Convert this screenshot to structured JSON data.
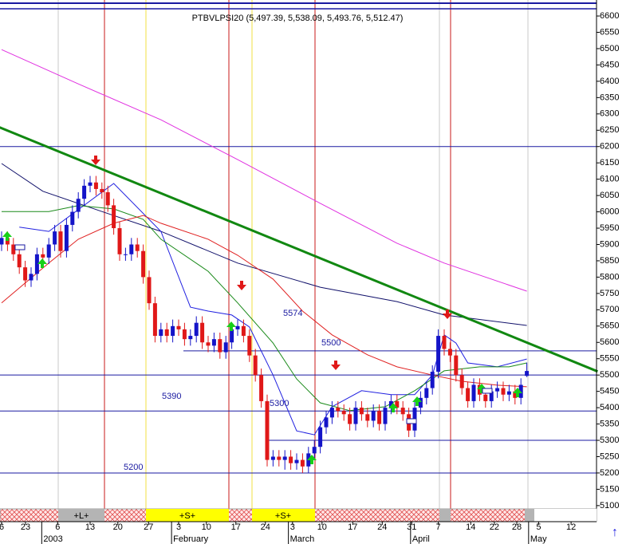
{
  "chart_data": {
    "type": "candlestick",
    "title": "PTBVLPSI20 (5,497.39, 5,538.09, 5,493.76, 5,512.47)",
    "xlim": [
      -0.27,
      100.81
    ],
    "ylim": [
      5085,
      6649
    ],
    "yticks": [
      5100,
      5150,
      5200,
      5250,
      5300,
      5350,
      5400,
      5450,
      5500,
      5550,
      5600,
      5650,
      5700,
      5750,
      5800,
      5850,
      5900,
      5950,
      6000,
      6050,
      6100,
      6150,
      6200,
      6250,
      6300,
      6350,
      6400,
      6450,
      6500,
      6550,
      6600
    ],
    "xticks": [
      {
        "value": 0,
        "label": "6"
      },
      {
        "value": 4.05,
        "label": "23"
      },
      {
        "value": 9.5,
        "label": "6"
      },
      {
        "value": 15,
        "label": "13"
      },
      {
        "value": 19.7,
        "label": "20"
      },
      {
        "value": 24.9,
        "label": "27"
      },
      {
        "value": 30,
        "label": "3"
      },
      {
        "value": 34.7,
        "label": "10"
      },
      {
        "value": 39.7,
        "label": "17"
      },
      {
        "value": 44.7,
        "label": "24"
      },
      {
        "value": 49.3,
        "label": "3"
      },
      {
        "value": 54.3,
        "label": "10"
      },
      {
        "value": 59.5,
        "label": "17"
      },
      {
        "value": 64.5,
        "label": "24"
      },
      {
        "value": 69.5,
        "label": "31"
      },
      {
        "value": 74,
        "label": "7"
      },
      {
        "value": 79.5,
        "label": "14"
      },
      {
        "value": 83.5,
        "label": "22"
      },
      {
        "value": 87.3,
        "label": "28"
      },
      {
        "value": 91,
        "label": "5"
      },
      {
        "value": 96.5,
        "label": "12"
      }
    ],
    "month_ticks": [
      {
        "value": 6.8,
        "label": "2003"
      },
      {
        "value": 28.8,
        "label": "February"
      },
      {
        "value": 48.6,
        "label": "March"
      },
      {
        "value": 69.3,
        "label": "April"
      },
      {
        "value": 89.3,
        "label": "May"
      }
    ],
    "up_color": "#1414c8",
    "down_color": "#e01818",
    "open": [
      5900,
      5920,
      5900,
      5870,
      5830,
      5790,
      5810,
      5870,
      5860,
      5900,
      5940,
      5880,
      5960,
      6000,
      6040,
      6080,
      6090,
      6070,
      6060,
      6020,
      5950,
      5870,
      5870,
      5900,
      5880,
      5800,
      5720,
      5620,
      5640,
      5620,
      5650,
      5640,
      5610,
      5620,
      5660,
      5600,
      5590,
      5610,
      5570,
      5600,
      5640,
      5650,
      5620,
      5560,
      5500,
      5420,
      5240,
      5250,
      5240,
      5250,
      5230,
      5240,
      5220,
      5260,
      5280,
      5340,
      5370,
      5400,
      5390,
      5380,
      5350,
      5400,
      5380,
      5360,
      5390,
      5350,
      5400,
      5420,
      5400,
      5380,
      5330,
      5400,
      5430,
      5460,
      5510,
      5620,
      5580,
      5560,
      5500,
      5460,
      5420,
      5470,
      5440,
      5420,
      5450,
      5460,
      5440,
      5450,
      5430,
      5497.39
    ],
    "high": [
      5940,
      5940,
      5920,
      5890,
      5850,
      5830,
      5890,
      5890,
      5920,
      5960,
      5960,
      5980,
      6020,
      6060,
      6100,
      6110,
      6110,
      6090,
      6080,
      6040,
      5970,
      5890,
      5920,
      5920,
      5900,
      5820,
      5740,
      5660,
      5660,
      5670,
      5670,
      5660,
      5640,
      5680,
      5680,
      5620,
      5630,
      5630,
      5620,
      5660,
      5670,
      5670,
      5640,
      5580,
      5520,
      5440,
      5270,
      5270,
      5270,
      5270,
      5260,
      5260,
      5280,
      5300,
      5360,
      5390,
      5420,
      5420,
      5410,
      5400,
      5420,
      5420,
      5400,
      5410,
      5410,
      5420,
      5440,
      5440,
      5420,
      5400,
      5420,
      5450,
      5480,
      5530,
      5640,
      5640,
      5600,
      5580,
      5520,
      5480,
      5490,
      5490,
      5460,
      5470,
      5480,
      5480,
      5470,
      5470,
      5490,
      5538.09
    ],
    "low": [
      5880,
      5880,
      5850,
      5810,
      5770,
      5770,
      5790,
      5840,
      5840,
      5880,
      5860,
      5860,
      5940,
      5980,
      6020,
      6060,
      6050,
      6040,
      6000,
      5930,
      5850,
      5850,
      5850,
      5860,
      5780,
      5700,
      5600,
      5600,
      5600,
      5600,
      5620,
      5590,
      5590,
      5600,
      5580,
      5570,
      5570,
      5550,
      5550,
      5580,
      5620,
      5600,
      5540,
      5480,
      5400,
      5220,
      5220,
      5220,
      5210,
      5210,
      5210,
      5200,
      5200,
      5240,
      5260,
      5320,
      5350,
      5370,
      5360,
      5330,
      5330,
      5360,
      5340,
      5340,
      5330,
      5330,
      5380,
      5380,
      5360,
      5310,
      5310,
      5380,
      5410,
      5440,
      5490,
      5560,
      5540,
      5480,
      5440,
      5400,
      5400,
      5420,
      5400,
      5400,
      5430,
      5420,
      5420,
      5410,
      5410,
      5493.76
    ],
    "close": [
      5920,
      5900,
      5870,
      5830,
      5790,
      5810,
      5870,
      5860,
      5900,
      5940,
      5880,
      5960,
      6000,
      6040,
      6080,
      6090,
      6070,
      6060,
      6020,
      5950,
      5870,
      5870,
      5900,
      5880,
      5800,
      5720,
      5620,
      5640,
      5620,
      5650,
      5640,
      5610,
      5620,
      5660,
      5600,
      5590,
      5610,
      5570,
      5600,
      5640,
      5650,
      5620,
      5560,
      5500,
      5420,
      5240,
      5250,
      5240,
      5250,
      5230,
      5240,
      5220,
      5260,
      5280,
      5340,
      5370,
      5400,
      5390,
      5380,
      5350,
      5400,
      5380,
      5360,
      5390,
      5350,
      5400,
      5420,
      5400,
      5380,
      5330,
      5400,
      5430,
      5460,
      5510,
      5620,
      5580,
      5560,
      5500,
      5460,
      5420,
      5470,
      5440,
      5420,
      5450,
      5460,
      5440,
      5450,
      5430,
      5470,
      5512.47
    ],
    "lines": [
      {
        "color": "#e030e0",
        "width": 1,
        "x": [
          0,
          13,
          27,
          40,
          54,
          67,
          75,
          89
        ],
        "values": [
          6497,
          6392,
          6282,
          6160,
          6026,
          5904,
          5843,
          5757
        ]
      },
      {
        "color": "#10106a",
        "width": 1,
        "x": [
          0,
          7,
          17,
          27,
          40,
          54,
          67,
          75,
          89
        ],
        "values": [
          6148,
          6063,
          6001,
          5940,
          5843,
          5769,
          5725,
          5684,
          5652
        ]
      },
      {
        "color": "#118811",
        "width": 3,
        "x": [
          -0.5,
          101
        ],
        "values": [
          6260,
          5511
        ]
      },
      {
        "color": "#2020e0",
        "width": 1,
        "x": [
          3,
          8,
          19,
          27,
          32,
          35,
          39,
          42,
          46,
          50,
          53,
          56,
          61,
          66,
          70,
          73,
          75,
          77,
          79,
          84,
          89
        ],
        "values": [
          5953,
          5940,
          6087,
          5940,
          5708,
          5696,
          5684,
          5647,
          5500,
          5329,
          5317,
          5403,
          5452,
          5440,
          5440,
          5500,
          5623,
          5598,
          5537,
          5525,
          5549
        ]
      },
      {
        "color": "#1a8a1a",
        "width": 1,
        "x": [
          0,
          8,
          13,
          19,
          24,
          27,
          35,
          40,
          46,
          50,
          54,
          59,
          65,
          70,
          75,
          81,
          86,
          89
        ],
        "values": [
          6001,
          6001,
          6019,
          6009,
          5977,
          5916,
          5818,
          5721,
          5598,
          5488,
          5415,
          5391,
          5403,
          5452,
          5513,
          5525,
          5525,
          5537
        ]
      },
      {
        "color": "#e02020",
        "width": 1,
        "x": [
          0,
          8,
          13,
          19,
          24,
          27,
          35,
          40,
          46,
          51,
          56,
          62,
          67,
          73,
          78,
          84,
          89
        ],
        "values": [
          5721,
          5843,
          5916,
          5965,
          5989,
          5965,
          5916,
          5867,
          5794,
          5696,
          5623,
          5562,
          5525,
          5500,
          5481,
          5469,
          5464
        ]
      }
    ],
    "levels": [
      6200,
      5574,
      5500,
      5390,
      5300,
      5200
    ],
    "level_color": "#1a1aa0",
    "signal_band": [
      "+L+",
      "+S+",
      "+S+"
    ]
  }
}
